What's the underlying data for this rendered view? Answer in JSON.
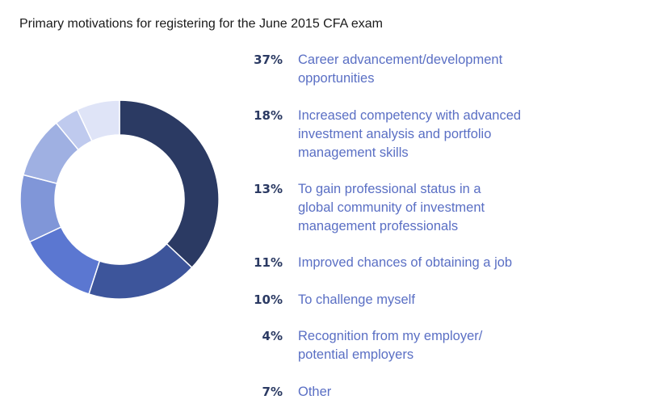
{
  "chart_data": {
    "type": "pie",
    "title": "Primary motivations for registering for the June 2015 CFA exam",
    "slices": [
      {
        "label": "Career advancement/development opportunities",
        "pct_label": "37%",
        "value": 37,
        "color": "#2b3a63"
      },
      {
        "label": "Increased competency with advanced investment analysis and portfolio management skills",
        "pct_label": "18%",
        "value": 18,
        "color": "#3d559b"
      },
      {
        "label": "To gain professional status in a global community of investment management professionals",
        "pct_label": "13%",
        "value": 13,
        "color": "#5b77d1"
      },
      {
        "label": "Improved chances of obtaining a job",
        "pct_label": "11%",
        "value": 11,
        "color": "#8096d8"
      },
      {
        "label": "To challenge myself",
        "pct_label": "10%",
        "value": 10,
        "color": "#9fb0e2"
      },
      {
        "label": "Recognition from my employer/ potential employers",
        "pct_label": "4%",
        "value": 4,
        "color": "#bfcaee"
      },
      {
        "label": "Other",
        "pct_label": "7%",
        "value": 7,
        "color": "#dfe4f7"
      }
    ],
    "legend": "right"
  }
}
